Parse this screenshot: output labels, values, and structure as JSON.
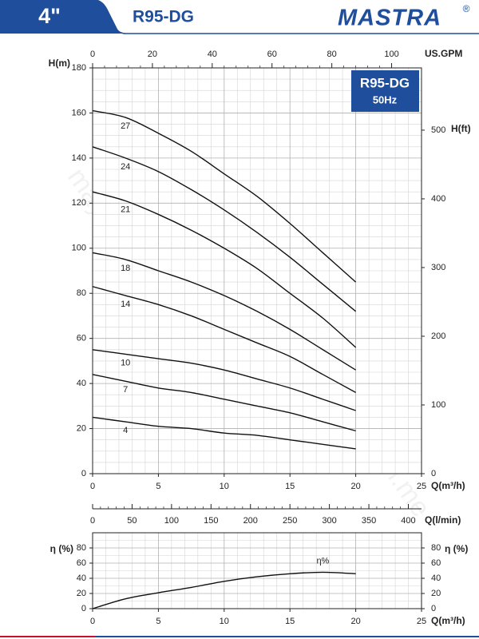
{
  "header": {
    "size": "4\"",
    "model": "R95-DG",
    "brand": "MASTRA",
    "registered": "®"
  },
  "watermark": "mayboom.me",
  "chart_data": [
    {
      "type": "line",
      "box_title": "R95-DG",
      "box_subtitle": "50Hz",
      "x": [
        0,
        2.5,
        5,
        7.5,
        10,
        12.5,
        15,
        17.5,
        20
      ],
      "xlim": [
        0,
        25
      ],
      "xticks": [
        0,
        5,
        10,
        15,
        20,
        25
      ],
      "xlabel": "Q(m³/h)",
      "ylim": [
        0,
        180
      ],
      "yticks": [
        0,
        20,
        40,
        60,
        80,
        100,
        120,
        140,
        160,
        180
      ],
      "ylabel": "H(m)",
      "y2lim": [
        0,
        590.6
      ],
      "y2ticks": [
        0,
        100,
        200,
        300,
        400,
        500
      ],
      "y2label": "H(ft)",
      "x2lim": [
        0,
        110
      ],
      "x2ticks": [
        0,
        20,
        40,
        60,
        80,
        100
      ],
      "x2label": "US.GPM",
      "grid": true,
      "series": [
        {
          "name": "27",
          "color": "#111111",
          "values": [
            161,
            158,
            151,
            143,
            133,
            123,
            111,
            98,
            85
          ]
        },
        {
          "name": "24",
          "color": "#111111",
          "values": [
            145,
            140,
            134,
            126,
            117,
            107,
            96,
            84,
            72
          ]
        },
        {
          "name": "21",
          "color": "#111111",
          "values": [
            125,
            121,
            115,
            108,
            100,
            91,
            80,
            69,
            56
          ]
        },
        {
          "name": "18",
          "color": "#111111",
          "values": [
            98,
            95,
            90,
            85,
            79,
            72,
            64,
            55,
            46
          ]
        },
        {
          "name": "14",
          "color": "#111111",
          "values": [
            83,
            79,
            75,
            70,
            64,
            58,
            52,
            44,
            36
          ]
        },
        {
          "name": "10",
          "color": "#111111",
          "values": [
            55,
            53,
            51,
            49,
            46,
            42,
            38,
            33,
            28
          ]
        },
        {
          "name": "7",
          "color": "#111111",
          "values": [
            44,
            41,
            38,
            36,
            33,
            30,
            27,
            23,
            19
          ]
        },
        {
          "name": "4",
          "color": "#111111",
          "values": [
            25,
            23,
            21,
            20,
            18,
            17,
            15,
            13,
            11
          ]
        }
      ]
    },
    {
      "type": "line",
      "x": [
        0,
        2.5,
        5,
        7.5,
        10,
        12.5,
        15,
        17.5,
        20
      ],
      "xlim": [
        0,
        25
      ],
      "xticks": [
        0,
        5,
        10,
        15,
        20,
        25
      ],
      "xlabel": "Q(m³/h)",
      "x2lim": [
        0,
        416.7
      ],
      "x2ticks": [
        0,
        50,
        100,
        150,
        200,
        250,
        300,
        350,
        400
      ],
      "x2label": "Q(l/min)",
      "ylim": [
        0,
        100
      ],
      "yticks": [
        0,
        20,
        40,
        60,
        80
      ],
      "ylabel": "η (%)",
      "y2lim": [
        0,
        100
      ],
      "y2ticks": [
        0,
        20,
        40,
        60,
        80
      ],
      "y2label": "η (%)",
      "grid": true,
      "series": [
        {
          "name": "η%",
          "color": "#111111",
          "values": [
            0,
            13,
            21,
            28,
            36,
            42,
            46,
            48,
            46
          ]
        }
      ]
    }
  ]
}
